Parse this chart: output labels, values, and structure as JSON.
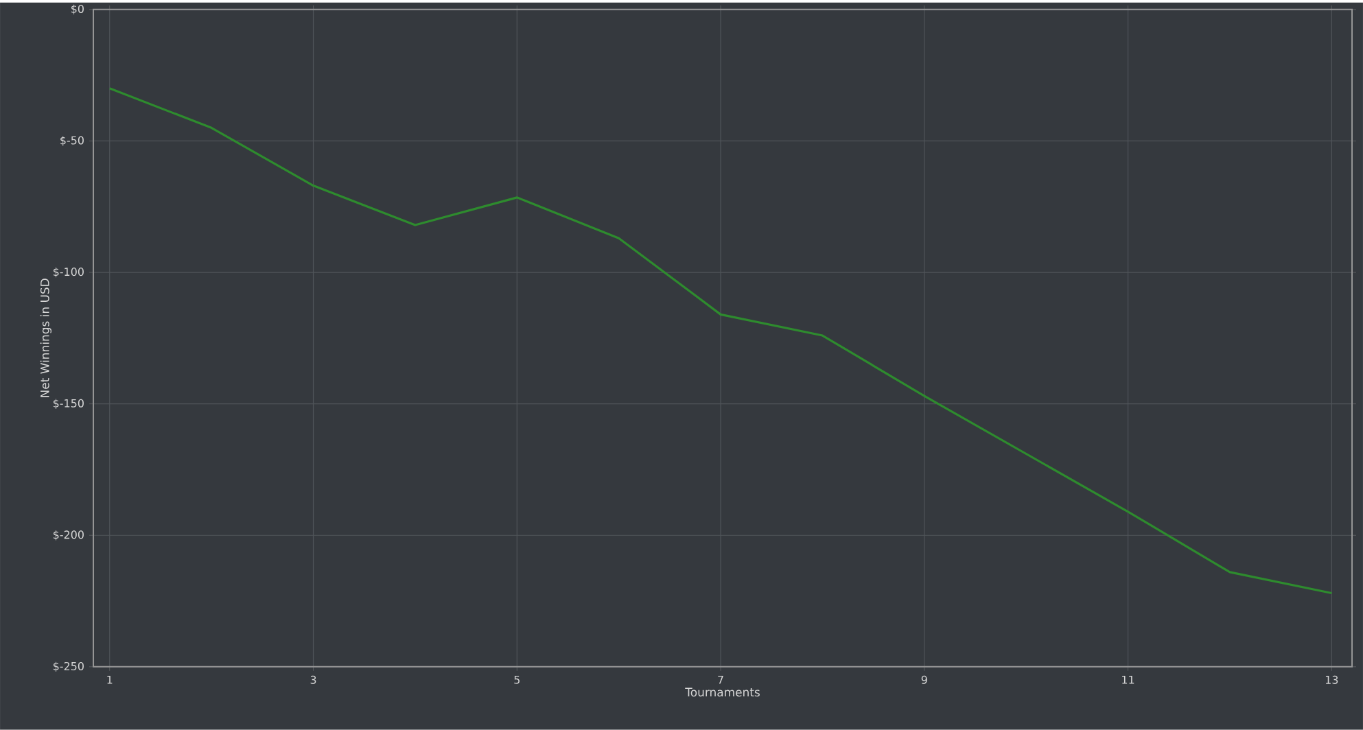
{
  "chart_data": {
    "type": "line",
    "xlabel": "Tournaments",
    "ylabel": "Net Winnings in USD",
    "x": [
      1,
      2,
      3,
      4,
      5,
      6,
      7,
      8,
      9,
      10,
      11,
      12,
      13
    ],
    "series": [
      {
        "color": "#2e8b2e",
        "values": [
          -30,
          -45,
          -67,
          -82,
          -71.5,
          -87,
          -116,
          -124,
          -147,
          -169,
          -191,
          -214,
          -222
        ]
      }
    ],
    "xlim": [
      0.84,
      13.2
    ],
    "xticks": [
      1,
      3,
      5,
      7,
      9,
      11,
      13
    ],
    "ylim": [
      -250,
      0
    ],
    "yticks": [
      {
        "value": -250,
        "label": "$-250"
      },
      {
        "value": -200,
        "label": "$-200"
      },
      {
        "value": -150,
        "label": "$-150"
      },
      {
        "value": -100,
        "label": "$-100"
      },
      {
        "value": -50,
        "label": "$-50"
      },
      {
        "value": 0,
        "label": "$0"
      }
    ],
    "grid": true,
    "marker": "none",
    "line_style": "solid"
  }
}
